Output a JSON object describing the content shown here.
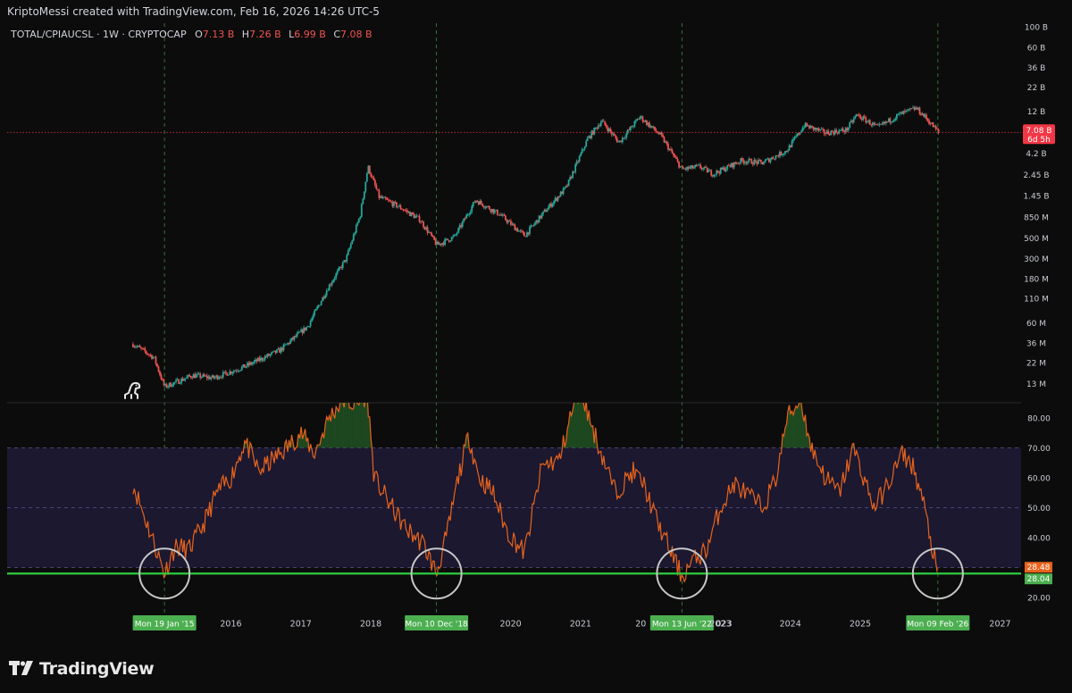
{
  "header": {
    "credit": "KriptoMessi created with TradingView.com, Feb 16, 2026 14:26 UTC-5"
  },
  "brand": {
    "name": "TradingView"
  },
  "colors": {
    "bg": "#0c0c0c",
    "up": "#26a69a",
    "down": "#ef5350",
    "rsi": "#e8631c",
    "band_fill": "#1b1830",
    "band_line": "#7e6bb0",
    "support": "#2ecc40",
    "label_green": "#4caf50",
    "price_label": "#f23645"
  },
  "chart_data": [
    {
      "type": "candlestick",
      "scale": "log",
      "legend": {
        "symbol": "TOTAL/CPIAUCSL · 1W · CRYPTOCAP",
        "open_label": "O",
        "open": "7.13 B",
        "high_label": "H",
        "high": "7.26 B",
        "low_label": "L",
        "low": "6.99 B",
        "close_label": "C",
        "close": "7.08 B"
      },
      "y_ticks": [
        "100 B",
        "60 B",
        "36 B",
        "22 B",
        "12 B",
        "4.2 B",
        "2.45 B",
        "1.45 B",
        "850 M",
        "500 M",
        "300 M",
        "180 M",
        "110 M",
        "60 M",
        "36 M",
        "22 M",
        "13 M"
      ],
      "y_tick_values": [
        100000,
        60000,
        36000,
        22000,
        12000,
        4200,
        2450,
        1450,
        850,
        500,
        300,
        180,
        110,
        60,
        36,
        22,
        13
      ],
      "ylim_millions": [
        9,
        100000
      ],
      "last_price": {
        "value": "7.08 B",
        "countdown": "6d 5h",
        "value_millions": 7080
      },
      "trend_anchors_millions": [
        [
          2014.6,
          35
        ],
        [
          2014.9,
          25
        ],
        [
          2015.05,
          12
        ],
        [
          2015.45,
          16
        ],
        [
          2015.75,
          15
        ],
        [
          2016.2,
          20
        ],
        [
          2016.7,
          30
        ],
        [
          2017.1,
          55
        ],
        [
          2017.4,
          150
        ],
        [
          2017.65,
          300
        ],
        [
          2017.85,
          900
        ],
        [
          2017.96,
          3000
        ],
        [
          2018.12,
          1400
        ],
        [
          2018.4,
          1100
        ],
        [
          2018.7,
          800
        ],
        [
          2018.95,
          420
        ],
        [
          2019.2,
          520
        ],
        [
          2019.5,
          1300
        ],
        [
          2019.85,
          900
        ],
        [
          2020.2,
          530
        ],
        [
          2020.5,
          1000
        ],
        [
          2020.8,
          1800
        ],
        [
          2021.1,
          6000
        ],
        [
          2021.3,
          9500
        ],
        [
          2021.55,
          5500
        ],
        [
          2021.85,
          10500
        ],
        [
          2022.15,
          6500
        ],
        [
          2022.45,
          2800
        ],
        [
          2022.7,
          3000
        ],
        [
          2022.9,
          2500
        ],
        [
          2023.3,
          3500
        ],
        [
          2023.6,
          3300
        ],
        [
          2023.95,
          4500
        ],
        [
          2024.2,
          8500
        ],
        [
          2024.5,
          7000
        ],
        [
          2024.8,
          7500
        ],
        [
          2024.95,
          11000
        ],
        [
          2025.25,
          8000
        ],
        [
          2025.55,
          11000
        ],
        [
          2025.8,
          13000
        ],
        [
          2025.95,
          10000
        ],
        [
          2026.12,
          7080
        ]
      ]
    },
    {
      "type": "line",
      "name": "RSI",
      "y_ticks": [
        "80.00",
        "70.00",
        "60.00",
        "50.00",
        "40.00",
        "30.00",
        "20.00"
      ],
      "y_tick_values": [
        80,
        70,
        60,
        50,
        40,
        30,
        20
      ],
      "ylim": [
        15,
        85
      ],
      "upper_band": 70,
      "mid_band": 50,
      "lower_band": 30,
      "support_level": 28.04,
      "last_value": "28.48",
      "last_value_num": 28.48,
      "support_value": "28.04",
      "anchors": [
        [
          2014.6,
          58
        ],
        [
          2014.75,
          48
        ],
        [
          2014.95,
          35
        ],
        [
          2015.05,
          28
        ],
        [
          2015.2,
          37
        ],
        [
          2015.4,
          36
        ],
        [
          2015.6,
          44
        ],
        [
          2015.8,
          55
        ],
        [
          2016.0,
          60
        ],
        [
          2016.2,
          72
        ],
        [
          2016.4,
          62
        ],
        [
          2016.6,
          66
        ],
        [
          2016.8,
          70
        ],
        [
          2017.0,
          75
        ],
        [
          2017.2,
          68
        ],
        [
          2017.4,
          80
        ],
        [
          2017.6,
          86
        ],
        [
          2017.8,
          84
        ],
        [
          2017.95,
          88
        ],
        [
          2018.05,
          60
        ],
        [
          2018.25,
          52
        ],
        [
          2018.5,
          43
        ],
        [
          2018.75,
          38
        ],
        [
          2018.94,
          28
        ],
        [
          2019.1,
          42
        ],
        [
          2019.25,
          60
        ],
        [
          2019.4,
          74
        ],
        [
          2019.55,
          60
        ],
        [
          2019.75,
          55
        ],
        [
          2019.95,
          42
        ],
        [
          2020.2,
          35
        ],
        [
          2020.45,
          64
        ],
        [
          2020.7,
          66
        ],
        [
          2020.85,
          80
        ],
        [
          2021.0,
          90
        ],
        [
          2021.15,
          78
        ],
        [
          2021.3,
          68
        ],
        [
          2021.5,
          55
        ],
        [
          2021.75,
          62
        ],
        [
          2021.9,
          58
        ],
        [
          2022.1,
          45
        ],
        [
          2022.3,
          35
        ],
        [
          2022.45,
          27
        ],
        [
          2022.6,
          32
        ],
        [
          2022.8,
          36
        ],
        [
          2023.0,
          50
        ],
        [
          2023.2,
          58
        ],
        [
          2023.4,
          54
        ],
        [
          2023.6,
          50
        ],
        [
          2023.8,
          60
        ],
        [
          2023.95,
          80
        ],
        [
          2024.15,
          86
        ],
        [
          2024.3,
          70
        ],
        [
          2024.5,
          60
        ],
        [
          2024.7,
          55
        ],
        [
          2024.9,
          70
        ],
        [
          2025.05,
          60
        ],
        [
          2025.2,
          50
        ],
        [
          2025.4,
          58
        ],
        [
          2025.6,
          68
        ],
        [
          2025.75,
          64
        ],
        [
          2025.9,
          52
        ],
        [
          2026.0,
          40
        ],
        [
          2026.1,
          28.48
        ]
      ]
    }
  ],
  "x_axis": {
    "ticks": [
      "2016",
      "2017",
      "2018",
      "2019",
      "2020",
      "2021",
      "2022",
      "2023",
      "2024",
      "2025",
      "2026",
      "2027"
    ],
    "tick_values": [
      2016,
      2017,
      2018,
      2019,
      2020,
      2021,
      2022,
      2023,
      2024,
      2025,
      2026,
      2027
    ],
    "xlim": [
      2012.8,
      2027.3
    ],
    "hidden_ticks": [
      "2015",
      "2019",
      "2022",
      "2026"
    ],
    "markers": [
      {
        "label": "Mon 19 Jan '15",
        "t": 2015.05
      },
      {
        "label": "Mon 10 Dec '18",
        "t": 2018.94
      },
      {
        "label": "Mon 13 Jun '22",
        "t": 2022.45
      },
      {
        "label": "Mon 09 Feb '26",
        "t": 2026.11
      }
    ]
  }
}
